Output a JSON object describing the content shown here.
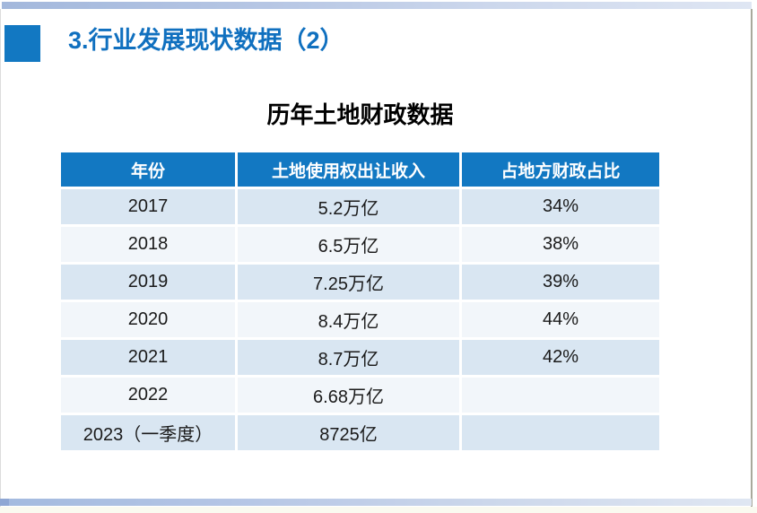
{
  "slide": {
    "heading": "3.行业发展现状数据（2）",
    "table_title": "历年土地财政数据"
  },
  "table": {
    "columns": [
      "年份",
      "土地使用权出让收入",
      "占地方财政占比"
    ],
    "rows": [
      [
        "2017",
        "5.2万亿",
        "34%"
      ],
      [
        "2018",
        "6.5万亿",
        "38%"
      ],
      [
        "2019",
        "7.25万亿",
        "39%"
      ],
      [
        "2020",
        "8.4万亿",
        "44%"
      ],
      [
        "2021",
        "8.7万亿",
        "42%"
      ],
      [
        "2022",
        "6.68万亿",
        ""
      ],
      [
        "2023（一季度）",
        "8725亿",
        ""
      ]
    ]
  },
  "colors": {
    "header_blue": "#1278c2",
    "heading_text_blue": "#1070bf",
    "row_light_blue": "#d9e6f2",
    "row_pale": "#f2f6fa",
    "top_bar_blue": "#a3b8dc",
    "bottom_bar_blue": "#a3badf"
  }
}
